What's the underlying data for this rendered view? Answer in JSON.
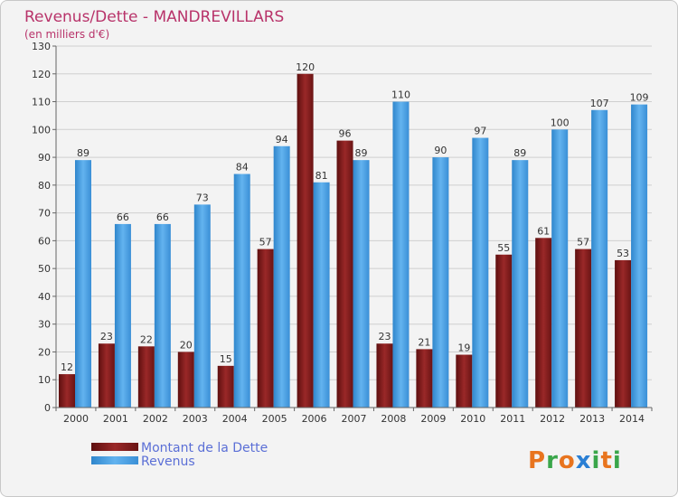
{
  "chart_data": {
    "type": "bar",
    "title": "Revenus/Dette - MANDREVILLARS",
    "subtitle": "(en milliers d'€)",
    "categories": [
      "2000",
      "2001",
      "2002",
      "2003",
      "2004",
      "2005",
      "2006",
      "2007",
      "2008",
      "2009",
      "2010",
      "2011",
      "2012",
      "2013",
      "2014"
    ],
    "series": [
      {
        "name": "Montant de la Dette",
        "color": "#8b1a1a",
        "values": [
          12,
          23,
          22,
          20,
          15,
          57,
          120,
          96,
          23,
          21,
          19,
          55,
          61,
          57,
          53
        ]
      },
      {
        "name": "Revenus",
        "color": "#4a9fe0",
        "values": [
          89,
          66,
          66,
          73,
          84,
          94,
          81,
          89,
          110,
          90,
          97,
          89,
          100,
          107,
          109
        ]
      }
    ],
    "ylim": [
      0,
      130
    ],
    "yticks": [
      0,
      10,
      20,
      30,
      40,
      50,
      60,
      70,
      80,
      90,
      100,
      110,
      120,
      130
    ],
    "grid": true,
    "legend_position": "bottom-left"
  },
  "brand": {
    "letters": [
      "P",
      "r",
      "o",
      "x",
      "i",
      "t",
      "i"
    ],
    "colors": [
      "#e8741e",
      "#3aa64a",
      "#e8741e",
      "#2a7fd4",
      "#3aa64a",
      "#e8741e",
      "#3aa64a"
    ]
  }
}
